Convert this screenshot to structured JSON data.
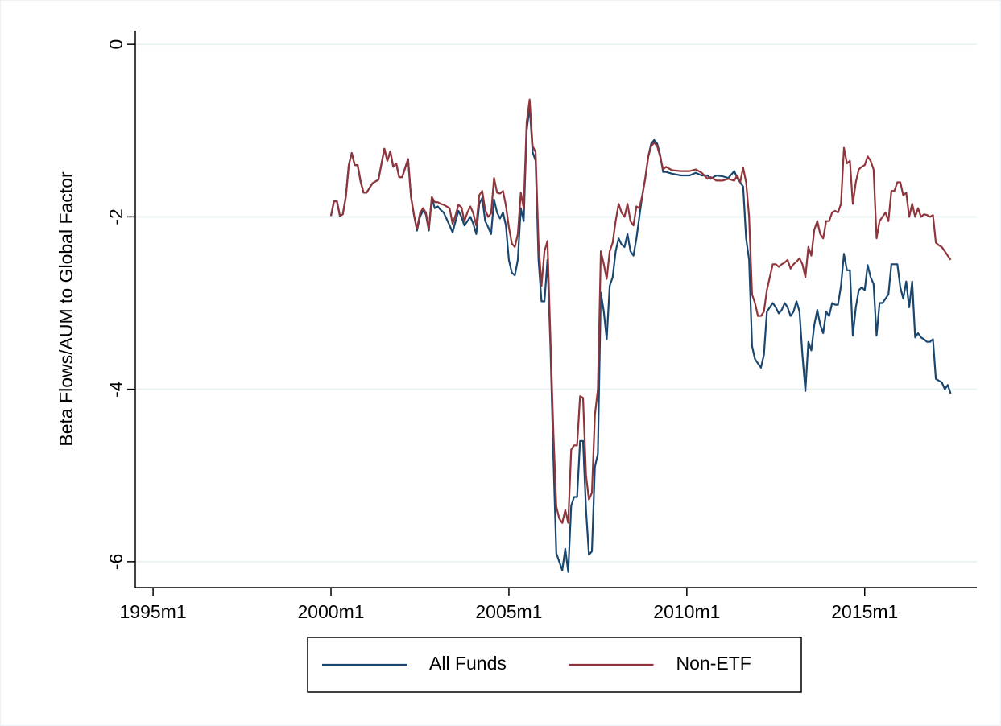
{
  "chart_data": {
    "type": "line",
    "ylabel": "Beta Flows/AUM to Global Factor",
    "x": [
      "2000m1",
      "2000m2",
      "2000m3",
      "2000m4",
      "2000m5",
      "2000m6",
      "2000m7",
      "2000m8",
      "2000m9",
      "2000m10",
      "2000m11",
      "2000m12",
      "2001m1",
      "2001m3",
      "2001m5",
      "2001m7",
      "2001m8",
      "2001m9",
      "2001m10",
      "2001m11",
      "2001m12",
      "2002m1",
      "2002m3",
      "2002m4",
      "2002m5",
      "2002m6",
      "2002m7",
      "2002m8",
      "2002m9",
      "2002m10",
      "2002m11",
      "2002m12",
      "2003m1",
      "2003m2",
      "2003m3",
      "2003m5",
      "2003m6",
      "2003m7",
      "2003m8",
      "2003m9",
      "2003m10",
      "2003m11",
      "2003m12",
      "2004m1",
      "2004m2",
      "2004m3",
      "2004m4",
      "2004m5",
      "2004m6",
      "2004m7",
      "2004m8",
      "2004m9",
      "2004m10",
      "2004m11",
      "2004m12",
      "2005m1",
      "2005m2",
      "2005m3",
      "2005m4",
      "2005m5",
      "2005m6",
      "2005m7",
      "2005m8",
      "2005m9",
      "2005m10",
      "2005m11",
      "2005m12",
      "2006m1",
      "2006m2",
      "2006m3",
      "2006m4",
      "2006m5",
      "2006m6",
      "2006m7",
      "2006m8",
      "2006m9",
      "2006m10",
      "2006m11",
      "2006m12",
      "2007m1",
      "2007m2",
      "2007m3",
      "2007m4",
      "2007m5",
      "2007m6",
      "2007m7",
      "2007m8",
      "2007m9",
      "2007m10",
      "2007m11",
      "2007m12",
      "2008m1",
      "2008m2",
      "2008m3",
      "2008m4",
      "2008m5",
      "2008m6",
      "2008m7",
      "2008m8",
      "2008m9",
      "2008m10",
      "2008m11",
      "2008m12",
      "2009m1",
      "2009m2",
      "2009m3",
      "2009m4",
      "2009m5",
      "2009m6",
      "2009m8",
      "2009m11",
      "2010m2",
      "2010m4",
      "2010m6",
      "2010m8",
      "2010m9",
      "2010m11",
      "2011m1",
      "2011m3",
      "2011m5",
      "2011m6",
      "2011m7",
      "2011m8",
      "2011m9",
      "2011m10",
      "2011m11",
      "2011m12",
      "2012m1",
      "2012m2",
      "2012m3",
      "2012m4",
      "2012m5",
      "2012m6",
      "2012m7",
      "2012m8",
      "2012m9",
      "2012m10",
      "2012m11",
      "2012m12",
      "2013m1",
      "2013m2",
      "2013m3",
      "2013m4",
      "2013m5",
      "2013m6",
      "2013m7",
      "2013m8",
      "2013m9",
      "2013m10",
      "2013m11",
      "2013m12",
      "2014m1",
      "2014m2",
      "2014m3",
      "2014m4",
      "2014m5",
      "2014m6",
      "2014m7",
      "2014m8",
      "2014m9",
      "2014m10",
      "2014m11",
      "2014m12",
      "2015m1",
      "2015m2",
      "2015m3",
      "2015m4",
      "2015m5",
      "2015m6",
      "2015m7",
      "2015m8",
      "2015m9",
      "2015m10",
      "2015m11",
      "2015m12",
      "2016m1",
      "2016m2",
      "2016m3",
      "2016m4",
      "2016m5",
      "2016m6",
      "2016m7",
      "2016m8",
      "2016m9",
      "2016m10",
      "2016m11",
      "2016m12",
      "2017m1",
      "2017m2",
      "2017m3",
      "2017m4",
      "2017m5",
      "2017m6"
    ],
    "series": [
      {
        "name": "All Funds",
        "color": "#1a476f",
        "values": [
          -1.99,
          -1.82,
          -1.82,
          -1.99,
          -1.97,
          -1.77,
          -1.4,
          -1.26,
          -1.4,
          -1.4,
          -1.59,
          -1.72,
          -1.72,
          -1.61,
          -1.57,
          -1.21,
          -1.35,
          -1.24,
          -1.42,
          -1.38,
          -1.54,
          -1.54,
          -1.33,
          -1.77,
          -1.98,
          -2.16,
          -2.0,
          -1.93,
          -1.97,
          -2.16,
          -1.78,
          -1.9,
          -1.88,
          -1.92,
          -1.95,
          -2.1,
          -2.18,
          -2.05,
          -1.93,
          -2.0,
          -2.1,
          -2.05,
          -2.0,
          -2.08,
          -2.2,
          -1.85,
          -1.78,
          -2.05,
          -2.12,
          -2.2,
          -1.8,
          -1.95,
          -2.02,
          -1.95,
          -2.1,
          -2.5,
          -2.65,
          -2.68,
          -2.5,
          -1.9,
          -2.05,
          -1.0,
          -0.72,
          -1.25,
          -1.35,
          -2.5,
          -2.98,
          -2.98,
          -2.5,
          -3.5,
          -4.8,
          -5.9,
          -6.0,
          -6.1,
          -5.85,
          -6.12,
          -5.35,
          -5.25,
          -5.25,
          -4.6,
          -4.6,
          -5.4,
          -5.92,
          -5.88,
          -4.9,
          -4.75,
          -2.88,
          -3.1,
          -3.42,
          -2.8,
          -2.7,
          -2.4,
          -2.25,
          -2.32,
          -2.35,
          -2.2,
          -2.4,
          -2.45,
          -2.25,
          -2.0,
          -1.75,
          -1.55,
          -1.3,
          -1.15,
          -1.11,
          -1.15,
          -1.28,
          -1.48,
          -1.48,
          -1.5,
          -1.52,
          -1.52,
          -1.49,
          -1.52,
          -1.52,
          -1.56,
          -1.52,
          -1.53,
          -1.55,
          -1.47,
          -1.55,
          -1.6,
          -1.65,
          -2.25,
          -2.5,
          -3.5,
          -3.65,
          -3.7,
          -3.75,
          -3.6,
          -3.1,
          -3.05,
          -3.0,
          -3.05,
          -3.12,
          -3.08,
          -3.0,
          -3.05,
          -3.15,
          -3.1,
          -2.98,
          -3.1,
          -3.6,
          -4.02,
          -3.45,
          -3.55,
          -3.25,
          -3.08,
          -3.25,
          -3.35,
          -3.1,
          -3.15,
          -3.0,
          -3.02,
          -3.02,
          -2.8,
          -2.43,
          -2.62,
          -2.62,
          -3.38,
          -3.05,
          -2.85,
          -2.82,
          -2.85,
          -2.56,
          -2.7,
          -2.78,
          -3.38,
          -3.0,
          -3.0,
          -2.95,
          -2.9,
          -2.55,
          -2.55,
          -2.55,
          -2.82,
          -2.95,
          -2.75,
          -3.05,
          -2.75,
          -3.4,
          -3.35,
          -3.4,
          -3.42,
          -3.45,
          -3.45,
          -3.42,
          -3.88,
          -3.9,
          -3.92,
          -4.0,
          -3.95,
          -4.05
        ]
      },
      {
        "name": "Non-ETF",
        "color": "#90353b",
        "values": [
          -1.99,
          -1.82,
          -1.82,
          -1.99,
          -1.97,
          -1.77,
          -1.4,
          -1.26,
          -1.4,
          -1.4,
          -1.59,
          -1.72,
          -1.72,
          -1.61,
          -1.57,
          -1.21,
          -1.35,
          -1.24,
          -1.42,
          -1.38,
          -1.54,
          -1.54,
          -1.33,
          -1.77,
          -1.98,
          -2.14,
          -1.96,
          -1.9,
          -1.95,
          -2.14,
          -1.77,
          -1.83,
          -1.83,
          -1.85,
          -1.86,
          -1.9,
          -2.08,
          -1.98,
          -1.86,
          -1.89,
          -2.05,
          -1.95,
          -1.88,
          -1.96,
          -2.1,
          -1.75,
          -1.7,
          -1.92,
          -2.0,
          -1.96,
          -1.55,
          -1.72,
          -1.73,
          -1.7,
          -1.87,
          -2.12,
          -2.31,
          -2.35,
          -2.2,
          -1.72,
          -1.9,
          -0.9,
          -0.64,
          -1.18,
          -1.25,
          -2.3,
          -2.8,
          -2.4,
          -2.28,
          -3.4,
          -4.5,
          -5.36,
          -5.5,
          -5.55,
          -5.4,
          -5.55,
          -4.7,
          -4.65,
          -4.65,
          -4.08,
          -4.1,
          -5.0,
          -5.28,
          -5.2,
          -4.3,
          -4.0,
          -2.4,
          -2.55,
          -2.72,
          -2.4,
          -2.3,
          -2.05,
          -1.85,
          -1.95,
          -2.0,
          -1.85,
          -2.05,
          -2.1,
          -1.88,
          -1.9,
          -1.75,
          -1.55,
          -1.3,
          -1.18,
          -1.14,
          -1.18,
          -1.3,
          -1.45,
          -1.42,
          -1.46,
          -1.47,
          -1.47,
          -1.45,
          -1.49,
          -1.56,
          -1.54,
          -1.58,
          -1.58,
          -1.56,
          -1.58,
          -1.52,
          -1.6,
          -1.43,
          -1.6,
          -2.0,
          -2.9,
          -3.0,
          -3.15,
          -3.15,
          -3.1,
          -2.85,
          -2.7,
          -2.55,
          -2.55,
          -2.58,
          -2.55,
          -2.53,
          -2.5,
          -2.6,
          -2.55,
          -2.52,
          -2.48,
          -2.55,
          -2.7,
          -2.35,
          -2.45,
          -2.15,
          -2.05,
          -2.2,
          -2.25,
          -2.05,
          -2.05,
          -1.95,
          -1.93,
          -1.95,
          -1.85,
          -1.2,
          -1.38,
          -1.35,
          -1.85,
          -1.6,
          -1.45,
          -1.42,
          -1.4,
          -1.3,
          -1.35,
          -1.45,
          -2.25,
          -2.05,
          -2.0,
          -1.95,
          -2.05,
          -1.7,
          -1.7,
          -1.6,
          -1.6,
          -1.75,
          -1.72,
          -2.0,
          -1.85,
          -2.0,
          -1.9,
          -2.0,
          -1.97,
          -1.98,
          -2.0,
          -1.98,
          -2.3,
          -2.33,
          -2.35,
          -2.4,
          -2.45,
          -2.5
        ]
      }
    ],
    "xlim": [
      "1994m7",
      "2018m2"
    ],
    "xticks": [
      "1995m1",
      "2000m1",
      "2005m1",
      "2010m1",
      "2015m1"
    ],
    "ylim": [
      -6.3,
      0.16
    ],
    "yticks": [
      0,
      -2,
      -4,
      -6
    ],
    "grid": true,
    "legend": "bottom"
  }
}
